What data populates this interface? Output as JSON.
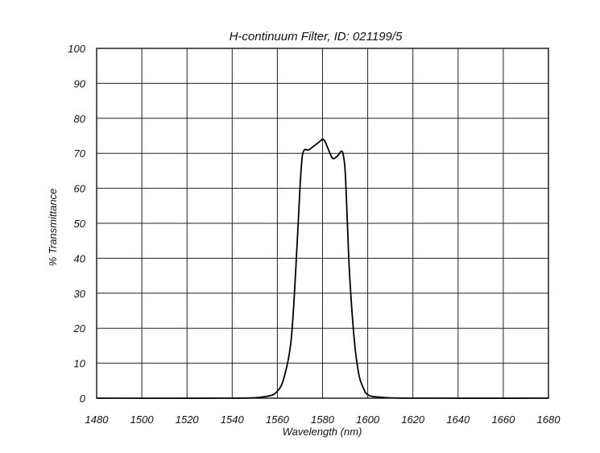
{
  "chart_data": {
    "type": "line",
    "title": "H-continuum Filter, ID: 021199/5",
    "xlabel": "Wavelength (nm)",
    "ylabel": "% Transmittance",
    "xlim": [
      1480,
      1680
    ],
    "ylim": [
      0,
      100
    ],
    "x_ticks": [
      1480,
      1500,
      1520,
      1540,
      1560,
      1580,
      1600,
      1620,
      1640,
      1660,
      1680
    ],
    "y_ticks": [
      0,
      10,
      20,
      30,
      40,
      50,
      60,
      70,
      80,
      90,
      100
    ],
    "grid": true,
    "legend": "none",
    "series": [
      {
        "line_color": "#000000",
        "x": [
          1480,
          1540,
          1555,
          1560,
          1563,
          1566,
          1568,
          1570,
          1571,
          1572,
          1573,
          1574,
          1576,
          1578,
          1580,
          1581,
          1582,
          1584,
          1585,
          1587,
          1588,
          1589,
          1590,
          1591,
          1592,
          1594,
          1596,
          1598,
          1600,
          1605,
          1620,
          1680
        ],
        "y": [
          0,
          0,
          0.5,
          2,
          6,
          16,
          35,
          60,
          69,
          71,
          71,
          71,
          72,
          73,
          74,
          73.5,
          72,
          69,
          68.5,
          69.5,
          70.5,
          70,
          65,
          50,
          35,
          17,
          7,
          3,
          1,
          0.3,
          0,
          0
        ]
      }
    ]
  }
}
